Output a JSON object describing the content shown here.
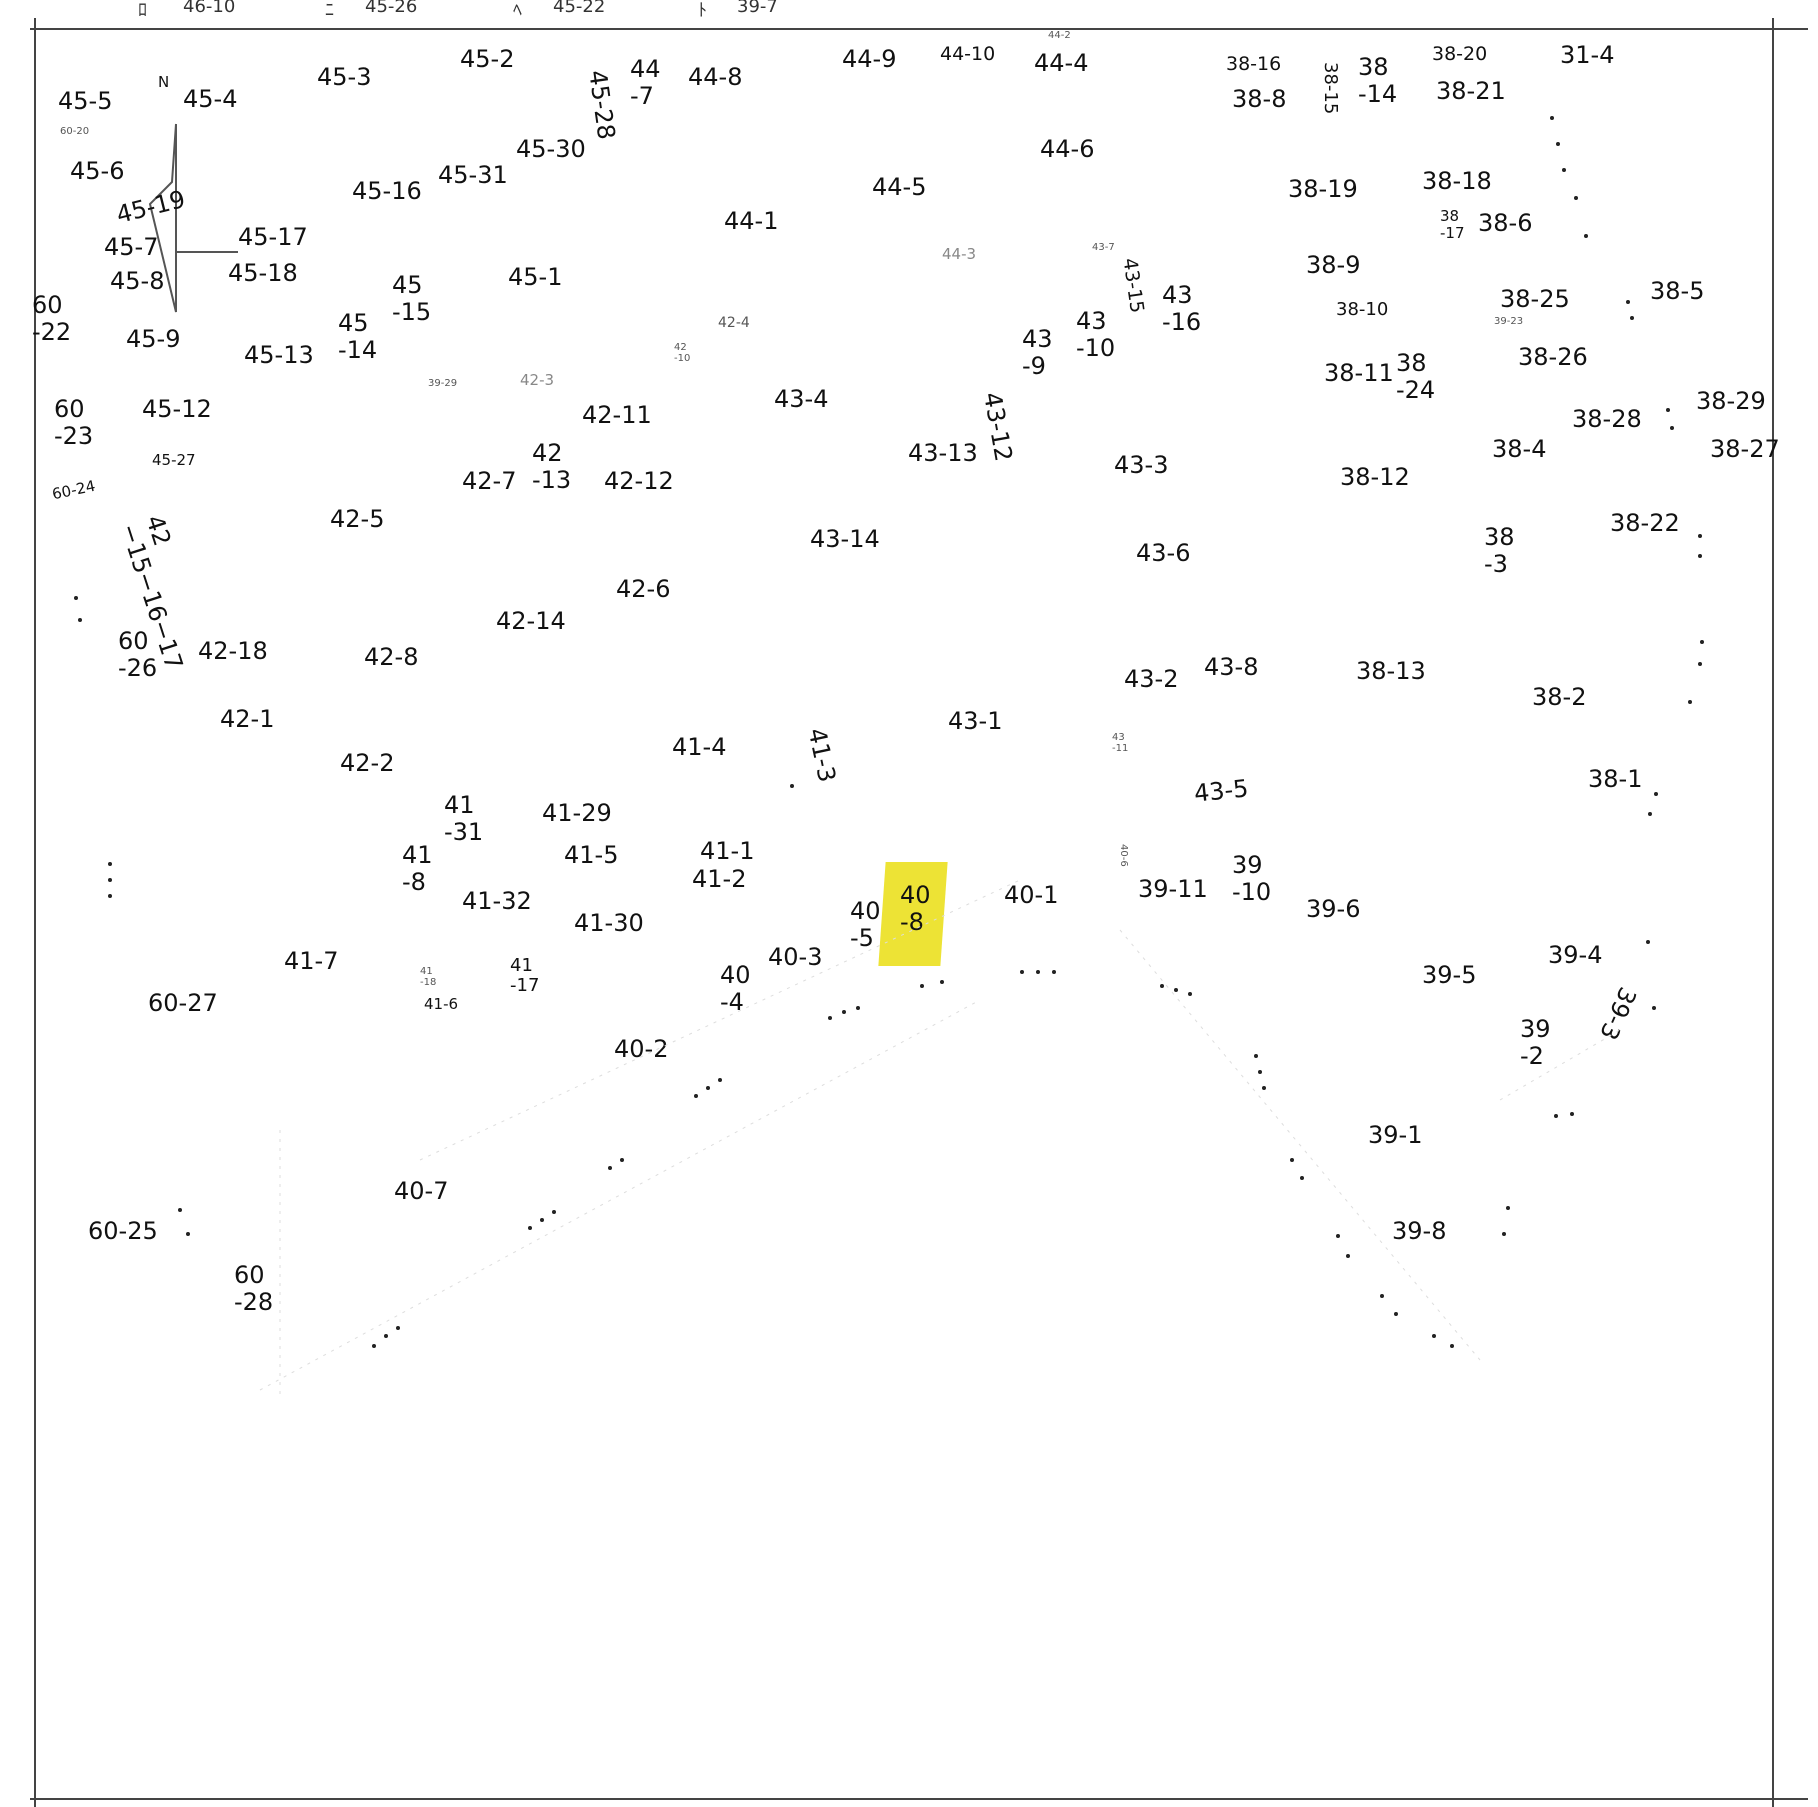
{
  "header": {
    "items": [
      {
        "mark": "ﾛ",
        "ref": "46-10"
      },
      {
        "mark": "ﾆ",
        "ref": "45-26"
      },
      {
        "mark": "ﾍ",
        "ref": "45-22"
      },
      {
        "mark": "ﾄ",
        "ref": "39-7"
      }
    ]
  },
  "north_label": "N",
  "highlight": {
    "parcel": "40-8",
    "color": "#ece22a"
  },
  "parcels": {
    "p45_5": "45-5",
    "p45_4": "45-4",
    "p45_3": "45-3",
    "p45_2": "45-2",
    "p45_28": "45-28",
    "p44_7": "44\n-7",
    "p44_8": "44-8",
    "p44_9": "44-9",
    "p44_10": "44-10",
    "p44_2": "44-2",
    "p44_4": "44-4",
    "p38_16": "38-16",
    "p38_14": "38\n-14",
    "p38_15": "38-15",
    "p38_8": "38-8",
    "p38_20": "38-20",
    "p38_21": "38-21",
    "p31_4": "31-4",
    "p60_20": "60-20",
    "p45_6": "45-6",
    "p45_30": "45-30",
    "p44_6": "44-6",
    "p45_31": "45-31",
    "p45_16": "45-16",
    "p45_19": "45-19",
    "p44_5": "44-5",
    "p38_19": "38-19",
    "p38_18": "38-18",
    "p44_1": "44-1",
    "p45_17": "45-17",
    "p45_7": "45-7",
    "p38_17": "38\n-17",
    "p38_6": "38-6",
    "p44_3": "44-3",
    "p43_7": "43-7",
    "p45_18": "45-18",
    "p45_8": "45-8",
    "p45_1": "45-1",
    "p45_15": "45\n-15",
    "p43_15": "43-15",
    "p43_16": "43\n-16",
    "p38_9": "38-9",
    "p38_25": "38-25",
    "p38_5": "38-5",
    "p60_22": "60\n-22",
    "p45_14": "45\n-14",
    "p45_9": "45-9",
    "p42_4": "42-4",
    "p43_10": "43\n-10",
    "p38_10": "38-10",
    "p39_23": "39-23",
    "p45_13": "45-13",
    "p42_10": "42\n-10",
    "p43_9": "43\n-9",
    "p38_11": "38-11",
    "p38_24": "38\n-24",
    "p38_26": "38-26",
    "p39_29": "39-29",
    "p42_3": "42-3",
    "p43_4": "43-4",
    "p43_12": "43-12",
    "p38_29": "38-29",
    "p60_23": "60\n-23",
    "p45_12": "45-12",
    "p42_11": "42-11",
    "p38_28": "38-28",
    "p45_27": "45-27",
    "p42_13": "42\n-13",
    "p43_13": "43-13",
    "p38_4": "38-4",
    "p38_27": "38-27",
    "p42_7": "42-7",
    "p42_12": "42-12",
    "p43_3": "43-3",
    "p38_12": "38-12",
    "p60_24": "60-24",
    "p42_15_16_17": "42\n−15−16−17",
    "p42_5": "42-5",
    "p38_22": "38-22",
    "p43_14": "43-14",
    "p38_3": "38\n-3",
    "p43_6": "43-6",
    "p42_6": "42-6",
    "p42_14": "42-14",
    "p60_26": "60\n-26",
    "p42_18": "42-18",
    "p42_8": "42-8",
    "p43_8": "43-8",
    "p38_13": "38-13",
    "p43_2": "43-2",
    "p38_2": "38-2",
    "p42_1": "42-1",
    "p43_1": "43-1",
    "p41_4": "41-4",
    "p41_3": "41-3",
    "p43_11": "43\n-11",
    "p42_2": "42-2",
    "p38_1": "38-1",
    "p43_5": "43-5",
    "p41_31": "41\n-31",
    "p41_29": "41-29",
    "p41_1": "41-1",
    "p41_5": "41-5",
    "p41_8": "41\n-8",
    "p40_6": "40-6",
    "p39_10": "39\n-10",
    "p41_2": "41-2",
    "p40_8": "40\n-8",
    "p40_1": "40-1",
    "p39_11": "39-11",
    "p41_32": "41-32",
    "p40_5": "40\n-5",
    "p39_6": "39-6",
    "p41_30": "41-30",
    "p39_4": "39-4",
    "p40_3": "40-3",
    "p41_7": "41-7",
    "p41_17": "41\n-17",
    "p41_18": "41\n-18",
    "p41_6": "41-6",
    "p40_4": "40\n-4",
    "p39_5": "39-5",
    "p39_3": "39-3",
    "p60_27": "60-27",
    "p39_2": "39\n-2",
    "p40_2": "40-2",
    "p39_1": "39-1",
    "p40_7": "40-7",
    "p60_25": "60-25",
    "p39_8": "39-8",
    "p60_28": "60\n-28"
  }
}
